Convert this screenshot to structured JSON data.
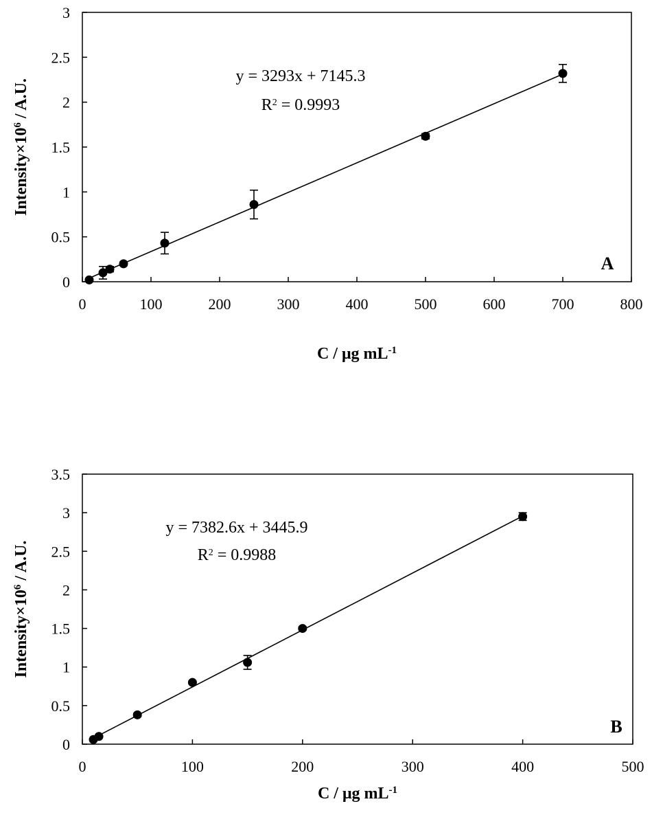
{
  "chart_data": [
    {
      "type": "scatter",
      "panel_label": "A",
      "xlabel": "C / μg mL-1",
      "ylabel": "Intensity×10^6 / A.U.",
      "xlim": [
        0,
        800
      ],
      "ylim": [
        0,
        3
      ],
      "x_ticks": [
        "0",
        "100",
        "200",
        "300",
        "400",
        "500",
        "600",
        "700",
        "800"
      ],
      "y_ticks": [
        "0",
        "0.5",
        "1",
        "1.5",
        "2",
        "2.5",
        "3"
      ],
      "x": [
        10,
        30,
        40,
        60,
        120,
        250,
        500,
        700
      ],
      "y": [
        0.02,
        0.1,
        0.14,
        0.2,
        0.43,
        0.86,
        1.62,
        2.32
      ],
      "error": [
        0.0,
        0.07,
        0.03,
        0.02,
        0.12,
        0.16,
        0.03,
        0.1
      ],
      "fit": {
        "slope": 3293,
        "intercept": 7145.3,
        "equation": "y = 3293x + 7145.3",
        "r2": "R2 = 0.9993"
      },
      "grid": false,
      "colors": {
        "marker": "#000000",
        "line": "#000000"
      }
    },
    {
      "type": "scatter",
      "panel_label": "B",
      "xlabel": "C / μg mL-1",
      "ylabel": "Intensity×10^6 / A.U.",
      "xlim": [
        0,
        500
      ],
      "ylim": [
        0,
        3.5
      ],
      "x_ticks": [
        "0",
        "100",
        "200",
        "300",
        "400",
        "500"
      ],
      "y_ticks": [
        "0",
        "0.5",
        "1",
        "1.5",
        "2",
        "2.5",
        "3",
        "3.5"
      ],
      "x": [
        10,
        15,
        50,
        100,
        150,
        200,
        400
      ],
      "y": [
        0.06,
        0.1,
        0.38,
        0.8,
        1.06,
        1.5,
        2.95
      ],
      "error": [
        0.0,
        0.0,
        0.02,
        0.02,
        0.09,
        0.02,
        0.05
      ],
      "fit": {
        "slope": 7382.6,
        "intercept": 3445.9,
        "equation": "y = 7382.6x + 3445.9",
        "r2": "R2 = 0.9988"
      },
      "grid": false,
      "colors": {
        "marker": "#000000",
        "line": "#000000"
      }
    }
  ]
}
